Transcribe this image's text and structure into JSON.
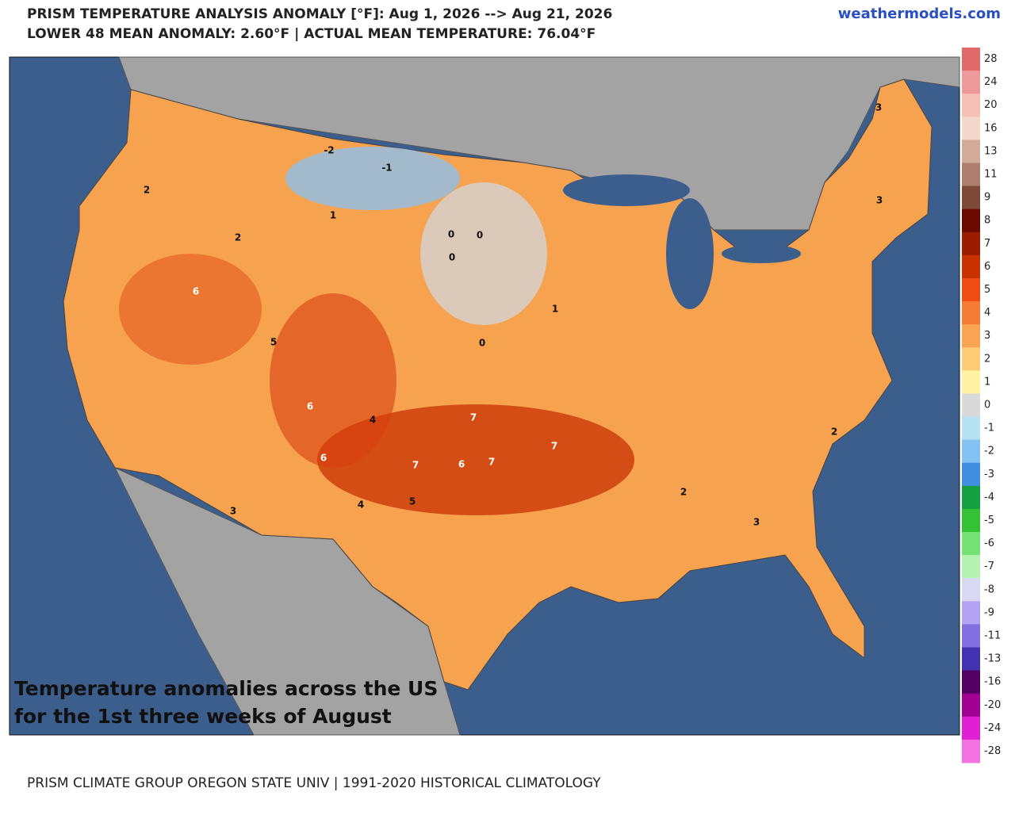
{
  "header": {
    "title": "PRISM TEMPERATURE ANALYSIS ANOMALY [°F]: Aug 1, 2026 --> Aug 21, 2026",
    "subtitle": "LOWER 48 MEAN ANOMALY: 2.60°F | ACTUAL MEAN TEMPERATURE: 76.04°F",
    "site": "weathermodels.com"
  },
  "caption": [
    "Temperature anomalies across the US",
    "for the 1st three weeks of August"
  ],
  "footer": "PRISM CLIMATE GROUP OREGON STATE UNIV | 1991-2020 HISTORICAL CLIMATOLOGY",
  "colorbar": {
    "labels": [
      "28",
      "24",
      "20",
      "16",
      "13",
      "11",
      "9",
      "8",
      "7",
      "6",
      "5",
      "4",
      "3",
      "2",
      "1",
      "0",
      "-1",
      "-2",
      "-3",
      "-4",
      "-5",
      "-6",
      "-7",
      "-8",
      "-9",
      "-11",
      "-13",
      "-16",
      "-20",
      "-24",
      "-28"
    ],
    "colors": [
      "#e06a6a",
      "#ef9a9a",
      "#f6c0b8",
      "#f3d6cc",
      "#d2aa9a",
      "#ae7f6e",
      "#7d4a3a",
      "#6b0a00",
      "#9c1c02",
      "#c93200",
      "#ef4d12",
      "#f57c32",
      "#f9a453",
      "#fccb73",
      "#fff2a2",
      "#d9d9d9",
      "#b4e2f2",
      "#83c2f2",
      "#3f8fe0",
      "#12a040",
      "#33c236",
      "#74e274",
      "#b4f2b2",
      "#d8d8f2",
      "#b2a2f2",
      "#8270e0",
      "#4232b2",
      "#520062",
      "#a20092",
      "#e020d2",
      "#f272e2"
    ]
  },
  "map_labels": [
    "6",
    "6",
    "7",
    "6",
    "7",
    "6",
    "7",
    "7",
    "-2",
    "0",
    "0",
    "0",
    "0",
    "3",
    "2",
    "3",
    "2",
    "3",
    "4",
    "5",
    "2",
    "1",
    "3",
    "-1",
    "5",
    "4",
    "2",
    "1"
  ]
}
